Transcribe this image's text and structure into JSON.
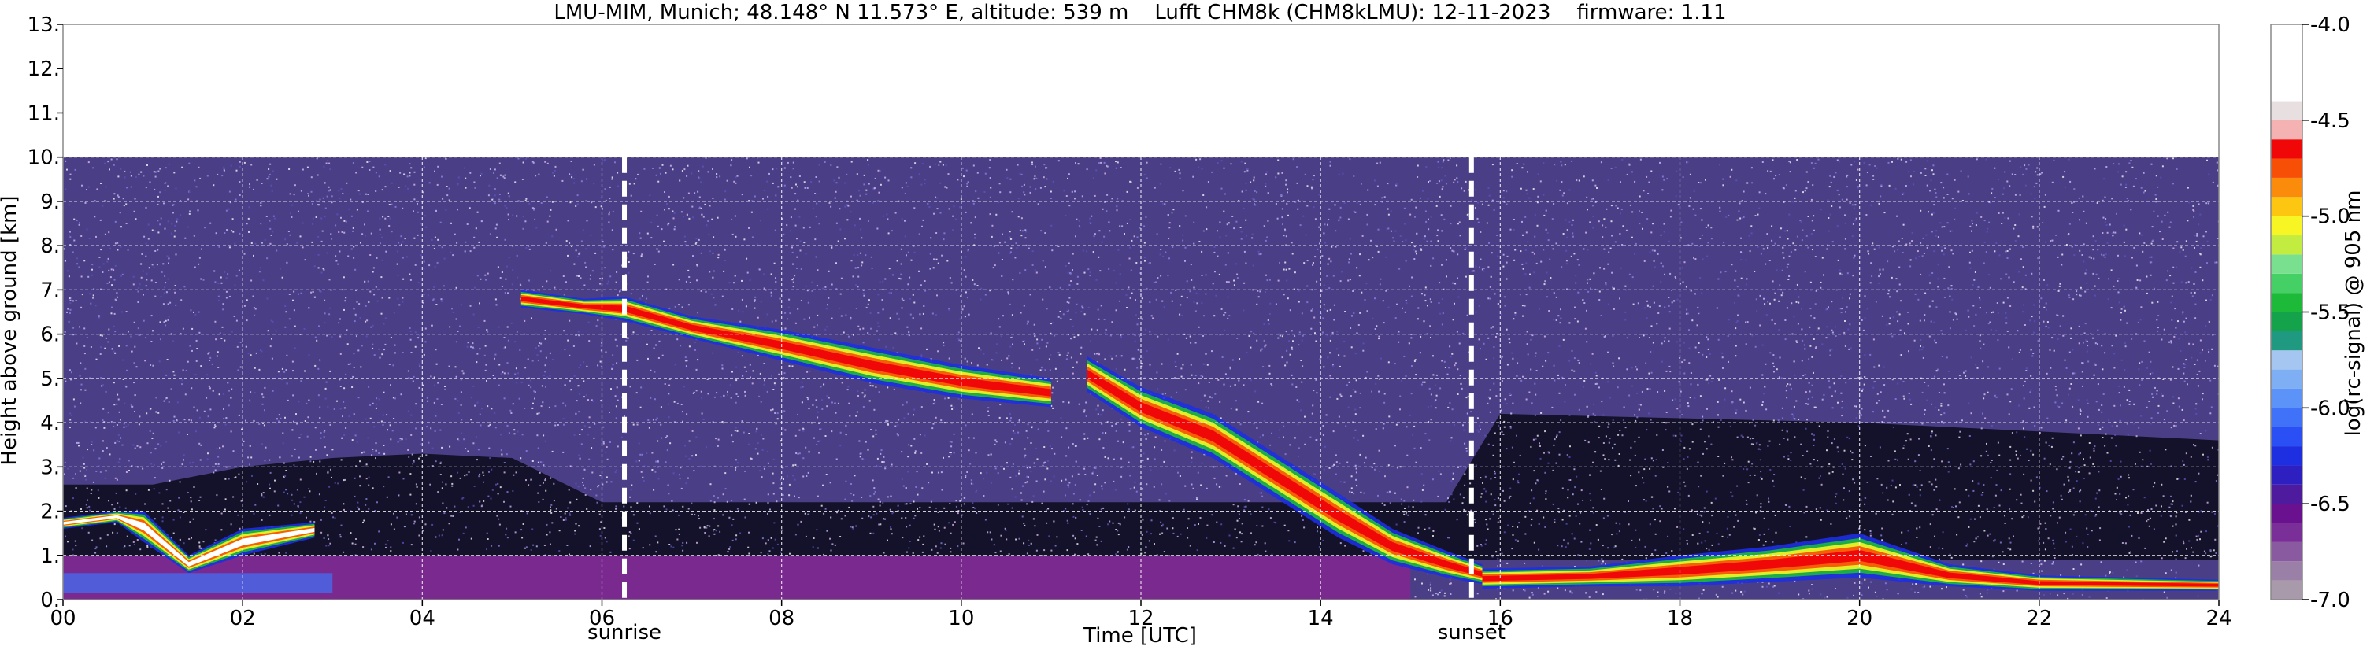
{
  "chart_data": {
    "type": "heatmap",
    "title": "LMU-MIM, Munich; 48.148° N 11.573° E, altitude: 539 m    Lufft CHM8k (CHM8kLMU): 12-11-2023    firmware: 1.11",
    "xlabel": "Time [UTC]",
    "ylabel": "Height above ground [km]",
    "xlim": [
      0,
      24
    ],
    "ylim": [
      0,
      13
    ],
    "x_ticks": [
      0,
      2,
      4,
      6,
      8,
      10,
      12,
      14,
      16,
      18,
      20,
      22,
      24
    ],
    "x_tick_labels": [
      "00",
      "02",
      "04",
      "06",
      "08",
      "10",
      "12",
      "14",
      "16",
      "18",
      "20",
      "22",
      "24"
    ],
    "y_ticks": [
      0,
      1,
      2,
      3,
      4,
      5,
      6,
      7,
      8,
      9,
      10,
      11,
      12,
      13
    ],
    "y_tick_labels": [
      "0.",
      "1.",
      "2.",
      "3.",
      "4.",
      "5.",
      "6.",
      "7.",
      "8.",
      "9.",
      "10.",
      "11.",
      "12.",
      "13."
    ],
    "grid": true,
    "data_top_km": 10.0,
    "markers": [
      {
        "label": "sunrise",
        "time": 6.25
      },
      {
        "label": "sunset",
        "time": 15.68
      }
    ],
    "colorbar": {
      "label": "log(rc-signal) @ 905 nm",
      "range": [
        -7.0,
        -4.0
      ],
      "ticks": [
        -4.0,
        -4.5,
        -5.0,
        -5.5,
        -6.0,
        -6.5,
        -7.0
      ],
      "tick_labels": [
        "-4.0",
        "-4.5",
        "-5.0",
        "-5.5",
        "-6.0",
        "-6.5",
        "-7.0"
      ],
      "levels": [
        {
          "from": -7.0,
          "to": -6.9,
          "color": "#a89aab"
        },
        {
          "from": -6.9,
          "to": -6.8,
          "color": "#9a7fa6"
        },
        {
          "from": -6.8,
          "to": -6.7,
          "color": "#8a5aa0"
        },
        {
          "from": -6.7,
          "to": -6.6,
          "color": "#7a2f98"
        },
        {
          "from": -6.6,
          "to": -6.5,
          "color": "#6a1190"
        },
        {
          "from": -6.5,
          "to": -6.4,
          "color": "#4f1b9e"
        },
        {
          "from": -6.4,
          "to": -6.3,
          "color": "#2d1fc0"
        },
        {
          "from": -6.3,
          "to": -6.2,
          "color": "#1d2fe0"
        },
        {
          "from": -6.2,
          "to": -6.1,
          "color": "#2a4ff5"
        },
        {
          "from": -6.1,
          "to": -6.0,
          "color": "#3f72f8"
        },
        {
          "from": -6.0,
          "to": -5.9,
          "color": "#5c93f8"
        },
        {
          "from": -5.9,
          "to": -5.8,
          "color": "#7eaff5"
        },
        {
          "from": -5.8,
          "to": -5.7,
          "color": "#a4c6f0"
        },
        {
          "from": -5.7,
          "to": -5.6,
          "color": "#1f9a80"
        },
        {
          "from": -5.6,
          "to": -5.5,
          "color": "#14a24a"
        },
        {
          "from": -5.5,
          "to": -5.4,
          "color": "#1dba3a"
        },
        {
          "from": -5.4,
          "to": -5.3,
          "color": "#45d066"
        },
        {
          "from": -5.3,
          "to": -5.2,
          "color": "#78e08e"
        },
        {
          "from": -5.2,
          "to": -5.1,
          "color": "#c2ec40"
        },
        {
          "from": -5.1,
          "to": -5.0,
          "color": "#f7f524"
        },
        {
          "from": -5.0,
          "to": -4.9,
          "color": "#fcc611"
        },
        {
          "from": -4.9,
          "to": -4.8,
          "color": "#fb8b0b"
        },
        {
          "from": -4.8,
          "to": -4.7,
          "color": "#f84f06"
        },
        {
          "from": -4.7,
          "to": -4.6,
          "color": "#f00808"
        },
        {
          "from": -4.6,
          "to": -4.5,
          "color": "#f4b2b2"
        },
        {
          "from": -4.5,
          "to": -4.4,
          "color": "#e8dfe0"
        },
        {
          "from": -4.4,
          "to": -4.0,
          "color": "#ffffff"
        }
      ]
    },
    "colors": {
      "background_noise": "#4a3f86",
      "low_noise_dark": "#0b0a1a",
      "boundary_layer": "#7a2a8e",
      "marker_line": "#ffffff"
    },
    "layers": [
      {
        "name": "cirrus-band",
        "points": [
          [
            5.1,
            6.6,
            7.0
          ],
          [
            5.8,
            6.45,
            6.8
          ],
          [
            6.25,
            6.3,
            6.85
          ],
          [
            7.0,
            5.9,
            6.4
          ],
          [
            8.0,
            5.4,
            6.1
          ],
          [
            9.0,
            4.9,
            5.7
          ],
          [
            10.0,
            4.55,
            5.3
          ],
          [
            11.0,
            4.35,
            5.0
          ]
        ],
        "core_color": "#f00808"
      },
      {
        "name": "descending-cloud",
        "points": [
          [
            11.4,
            4.7,
            5.5
          ],
          [
            12.0,
            3.9,
            4.8
          ],
          [
            12.8,
            3.2,
            4.2
          ],
          [
            13.5,
            2.3,
            3.3
          ],
          [
            14.2,
            1.4,
            2.4
          ],
          [
            14.8,
            0.8,
            1.6
          ],
          [
            15.4,
            0.5,
            1.1
          ],
          [
            15.8,
            0.35,
            0.8
          ]
        ],
        "core_color": "#f00808"
      },
      {
        "name": "evening-boundary",
        "points": [
          [
            15.8,
            0.25,
            0.7
          ],
          [
            17.0,
            0.3,
            0.75
          ],
          [
            18.0,
            0.3,
            1.0
          ],
          [
            19.0,
            0.4,
            1.2
          ],
          [
            20.0,
            0.5,
            1.5
          ],
          [
            21.0,
            0.3,
            0.8
          ],
          [
            22.0,
            0.2,
            0.55
          ],
          [
            23.0,
            0.2,
            0.5
          ],
          [
            24.0,
            0.2,
            0.45
          ]
        ],
        "core_color": "#f00808"
      },
      {
        "name": "night-layer",
        "points": [
          [
            0.0,
            1.6,
            1.85
          ],
          [
            0.6,
            1.75,
            2.0
          ],
          [
            0.9,
            1.3,
            2.0
          ],
          [
            1.4,
            0.6,
            1.0
          ],
          [
            2.0,
            1.0,
            1.6
          ],
          [
            2.8,
            1.4,
            1.75
          ]
        ],
        "core_color": "#ffffff"
      }
    ]
  }
}
